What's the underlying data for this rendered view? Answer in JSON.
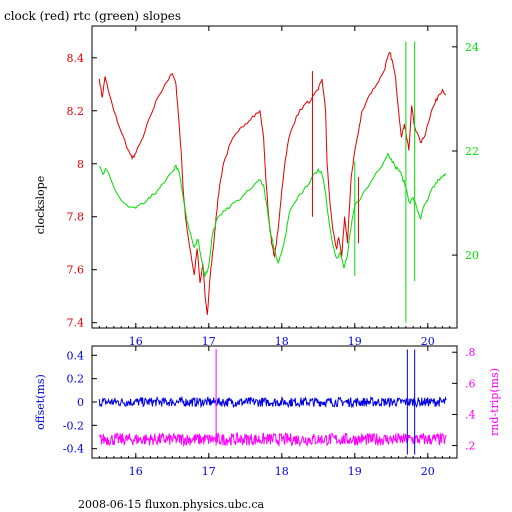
{
  "title": "clock (red) rtc (green) slopes",
  "footer": "2008-06-15 fluxon.physics.ubc.ca",
  "colors": {
    "clock": "#e00000",
    "rtc": "#00dd00",
    "offset": "#0000e0",
    "rndtrip": "#ff00ff",
    "axis": "#000000"
  },
  "chart_data": [
    {
      "type": "line",
      "title": "clock (red) rtc (green) slopes",
      "xlabel": "",
      "ylabel": "clockslope",
      "y2label": "",
      "xlim": [
        15.4,
        20.4
      ],
      "ylim": [
        7.38,
        8.52
      ],
      "y2lim": [
        18.6,
        24.4
      ],
      "xticks": [
        16,
        17,
        18,
        19,
        20
      ],
      "yticks": [
        7.4,
        7.6,
        7.8,
        8,
        8.2,
        8.4
      ],
      "ytick_labels": [
        "7.4",
        "7.6",
        "7.8",
        "8",
        "8.2",
        "8.4"
      ],
      "y2ticks": [
        20,
        22,
        24
      ],
      "grid": false,
      "series": [
        {
          "name": "clock",
          "axis": "left",
          "color": "#e00000",
          "x": [
            15.5,
            15.54,
            15.58,
            15.62,
            15.7,
            15.8,
            15.9,
            15.95,
            16.0,
            16.1,
            16.2,
            16.3,
            16.4,
            16.5,
            16.55,
            16.58,
            16.62,
            16.65,
            16.68,
            16.72,
            16.76,
            16.8,
            16.84,
            16.88,
            16.92,
            16.95,
            16.98,
            17.02,
            17.06,
            17.1,
            17.15,
            17.2,
            17.3,
            17.4,
            17.5,
            17.6,
            17.7,
            17.75,
            17.78,
            17.82,
            17.86,
            17.9,
            17.95,
            18.0,
            18.05,
            18.1,
            18.2,
            18.3,
            18.4,
            18.5,
            18.55,
            18.6,
            18.62,
            18.66,
            18.7,
            18.75,
            18.78,
            18.82,
            18.86,
            18.9,
            18.95,
            19.0,
            19.05,
            19.1,
            19.2,
            19.3,
            19.4,
            19.45,
            19.48,
            19.52,
            19.56,
            19.6,
            19.64,
            19.68,
            19.7,
            19.74,
            19.78,
            19.82,
            19.9,
            19.95,
            20.0,
            20.05,
            20.1,
            20.15,
            20.2,
            20.25
          ],
          "y": [
            8.32,
            8.25,
            8.33,
            8.28,
            8.2,
            8.12,
            8.05,
            8.02,
            8.04,
            8.1,
            8.18,
            8.25,
            8.3,
            8.34,
            8.3,
            8.2,
            8.05,
            7.9,
            7.8,
            7.72,
            7.65,
            7.58,
            7.68,
            7.55,
            7.62,
            7.5,
            7.43,
            7.58,
            7.68,
            7.8,
            7.92,
            8.0,
            8.08,
            8.12,
            8.15,
            8.18,
            8.2,
            8.1,
            7.95,
            7.8,
            7.7,
            7.65,
            7.75,
            7.9,
            8.02,
            8.1,
            8.18,
            8.22,
            8.24,
            8.28,
            8.32,
            8.2,
            8.0,
            7.85,
            7.75,
            7.68,
            7.72,
            7.65,
            7.8,
            7.7,
            7.95,
            8.05,
            8.12,
            8.2,
            8.26,
            8.3,
            8.35,
            8.4,
            8.42,
            8.38,
            8.32,
            8.2,
            8.1,
            8.15,
            8.12,
            8.05,
            8.22,
            8.14,
            8.08,
            8.1,
            8.15,
            8.2,
            8.23,
            8.26,
            8.28,
            8.26
          ]
        },
        {
          "name": "rtc",
          "axis": "right",
          "color": "#00dd00",
          "x": [
            15.5,
            15.55,
            15.6,
            15.7,
            15.8,
            15.9,
            16.0,
            16.1,
            16.2,
            16.3,
            16.4,
            16.5,
            16.55,
            16.6,
            16.65,
            16.7,
            16.75,
            16.8,
            16.85,
            16.9,
            16.95,
            17.0,
            17.05,
            17.1,
            17.2,
            17.3,
            17.4,
            17.5,
            17.6,
            17.7,
            17.75,
            17.8,
            17.85,
            17.9,
            17.95,
            18.0,
            18.05,
            18.1,
            18.2,
            18.3,
            18.4,
            18.5,
            18.55,
            18.6,
            18.65,
            18.7,
            18.75,
            18.8,
            18.85,
            18.9,
            18.95,
            19.0,
            19.1,
            19.2,
            19.3,
            19.4,
            19.45,
            19.5,
            19.55,
            19.6,
            19.65,
            19.7,
            19.75,
            19.8,
            19.85,
            19.9,
            19.95,
            20.0,
            20.05,
            20.1,
            20.15,
            20.2,
            20.25
          ],
          "y": [
            21.7,
            21.55,
            21.65,
            21.3,
            21.05,
            20.92,
            20.9,
            20.98,
            21.1,
            21.25,
            21.4,
            21.6,
            21.72,
            21.55,
            21.1,
            20.65,
            20.4,
            20.15,
            20.3,
            19.9,
            19.6,
            19.8,
            20.4,
            20.65,
            20.85,
            20.95,
            21.05,
            21.18,
            21.3,
            21.45,
            21.35,
            20.9,
            20.4,
            20.1,
            19.85,
            20.05,
            20.35,
            20.8,
            21.05,
            21.25,
            21.45,
            21.65,
            21.55,
            21.2,
            20.6,
            20.2,
            19.95,
            20.05,
            19.75,
            20.0,
            20.55,
            20.95,
            21.15,
            21.35,
            21.6,
            21.8,
            21.95,
            21.85,
            21.7,
            21.65,
            21.5,
            21.3,
            21.0,
            21.1,
            20.9,
            20.7,
            20.95,
            21.05,
            21.25,
            21.35,
            21.45,
            21.5,
            21.55
          ]
        }
      ],
      "spikes": [
        {
          "series": "rtc",
          "x": 19.7,
          "y_from": 18.7,
          "y_to": 24.1
        },
        {
          "series": "rtc",
          "x": 19.82,
          "y_from": 19.5,
          "y_to": 24.1
        },
        {
          "series": "rtc",
          "x": 19.0,
          "y_from": 19.6,
          "y_to": 21.8
        },
        {
          "series": "clock",
          "x": 18.42,
          "y_from": 7.8,
          "y_to": 8.35
        },
        {
          "series": "clock",
          "x": 19.05,
          "y_from": 7.7,
          "y_to": 7.95
        }
      ]
    },
    {
      "type": "line",
      "title": "",
      "xlabel": "",
      "ylabel": "offset(ms)",
      "y2label": "rnd-trip(ms)",
      "xlim": [
        15.4,
        20.4
      ],
      "ylim": [
        -0.48,
        0.48
      ],
      "y2lim": [
        0.12,
        0.84
      ],
      "xticks": [
        16,
        17,
        18,
        19,
        20
      ],
      "yticks": [
        -0.4,
        -0.2,
        0,
        0.2,
        0.4
      ],
      "ytick_labels": [
        "-0.4",
        "-0.2",
        "0",
        "0.2",
        "0.4"
      ],
      "y2ticks": [
        0.2,
        0.4,
        0.6,
        0.8
      ],
      "y2tick_labels": [
        ".2",
        ".4",
        ".6",
        ".8"
      ],
      "grid": false,
      "series": [
        {
          "name": "offset",
          "axis": "left",
          "color": "#0000e0",
          "x": [
            15.5,
            20.25
          ],
          "y": [
            0.0,
            0.0
          ],
          "noise": 0.04
        },
        {
          "name": "rnd-trip",
          "axis": "right",
          "color": "#ff00ff",
          "x": [
            15.5,
            20.25
          ],
          "y": [
            0.24,
            0.24
          ],
          "noise": 0.04
        }
      ],
      "spikes": [
        {
          "series": "rnd-trip",
          "x": 17.1,
          "y_from": 0.2,
          "y_to": 0.82
        },
        {
          "series": "offset",
          "x": 19.72,
          "y_from": -0.45,
          "y_to": 0.45
        },
        {
          "series": "offset",
          "x": 19.82,
          "y_from": -0.45,
          "y_to": 0.45
        }
      ]
    }
  ]
}
